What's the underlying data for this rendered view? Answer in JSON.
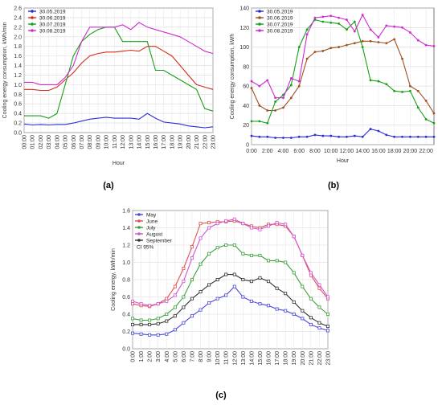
{
  "colors": {
    "blue": "#2b2bd6",
    "red": "#d62b1a",
    "green": "#18a018",
    "magenta": "#d02ad0",
    "darkred": "#a05020",
    "gray": "#333333"
  },
  "chart_data": [
    {
      "panel": "a",
      "panel_label": "(a)",
      "type": "line",
      "xlabel": "Hour",
      "ylabel": "Cooling energy consumption, kWh/min",
      "ylim": [
        0,
        2.6
      ],
      "yticks": [
        "0.0",
        "0.2",
        "0.4",
        "0.6",
        "0.8",
        "1.0",
        "1.2",
        "1.4",
        "1.6",
        "1.8",
        "2.0",
        "2.2",
        "2.4",
        "2.6"
      ],
      "x_tick_labels": [
        "00:00",
        "01:00",
        "02:00",
        "03:00",
        "04:00",
        "05:00",
        "06:00",
        "07:00",
        "08:00",
        "09:00",
        "10:00",
        "11:00",
        "12:00",
        "13:00",
        "14:00",
        "15:00",
        "16:00",
        "17:00",
        "18:00",
        "19:00",
        "20:00",
        "21:00",
        "22:00",
        "23:00"
      ],
      "legend_position": "top-left",
      "grid": true,
      "x": [
        0,
        1,
        2,
        3,
        4,
        5,
        6,
        7,
        8,
        9,
        10,
        11,
        12,
        13,
        14,
        15,
        16,
        17,
        18,
        19,
        20,
        21,
        22,
        23
      ],
      "series": [
        {
          "name": "30.05.2019",
          "color": "#2b2bd6",
          "values": [
            0.18,
            0.16,
            0.17,
            0.16,
            0.17,
            0.17,
            0.2,
            0.24,
            0.28,
            0.3,
            0.32,
            0.3,
            0.3,
            0.3,
            0.28,
            0.4,
            0.3,
            0.22,
            0.2,
            0.18,
            0.14,
            0.12,
            0.1,
            0.12
          ]
        },
        {
          "name": "30.06.2019",
          "color": "#d62b1a",
          "values": [
            0.9,
            0.9,
            0.88,
            0.88,
            0.95,
            1.1,
            1.25,
            1.45,
            1.6,
            1.65,
            1.68,
            1.68,
            1.7,
            1.72,
            1.7,
            1.8,
            1.8,
            1.7,
            1.6,
            1.4,
            1.2,
            1.0,
            0.95,
            0.9
          ]
        },
        {
          "name": "30.07.2019",
          "color": "#18a018",
          "values": [
            0.35,
            0.35,
            0.35,
            0.3,
            0.4,
            1.0,
            1.6,
            1.9,
            2.05,
            2.15,
            2.2,
            2.2,
            1.9,
            1.9,
            1.9,
            1.9,
            1.3,
            1.3,
            1.2,
            1.1,
            1.0,
            0.9,
            0.5,
            0.45
          ]
        },
        {
          "name": "30.08.2019",
          "color": "#d02ad0",
          "values": [
            1.05,
            1.05,
            1.0,
            1.0,
            1.0,
            1.15,
            1.4,
            1.9,
            2.2,
            2.2,
            2.2,
            2.2,
            2.25,
            2.15,
            2.3,
            2.2,
            2.15,
            2.1,
            2.05,
            2.0,
            1.9,
            1.8,
            1.7,
            1.65
          ]
        }
      ]
    },
    {
      "panel": "b",
      "panel_label": "(b)",
      "type": "line",
      "xlabel": "Hour",
      "ylabel": "Cooling energy consumption, kWh",
      "ylim": [
        0,
        140
      ],
      "yticks": [
        "0",
        "20",
        "40",
        "60",
        "80",
        "100",
        "120",
        "140"
      ],
      "x_tick_labels": [
        "0:00",
        "2:00",
        "4:00",
        "6:00",
        "8:00",
        "10:00",
        "12:00",
        "14:00",
        "16:00",
        "18:00",
        "20:00",
        "22:00"
      ],
      "legend_position": "top-left",
      "grid": true,
      "x": [
        0,
        1,
        2,
        3,
        4,
        5,
        6,
        7,
        8,
        9,
        10,
        11,
        12,
        13,
        14,
        15,
        16,
        17,
        18,
        19,
        20,
        21,
        22,
        23
      ],
      "series": [
        {
          "name": "30.05.2019",
          "color": "#2b2bd6",
          "values": [
            9,
            8,
            8,
            7,
            7,
            7,
            8,
            8,
            10,
            9,
            9,
            8,
            8,
            9,
            8,
            16,
            14,
            10,
            8,
            8,
            8,
            8,
            8,
            8
          ]
        },
        {
          "name": "30.06.2019",
          "color": "#a05020",
          "values": [
            58,
            40,
            35,
            35,
            38,
            48,
            60,
            88,
            95,
            96,
            99,
            100,
            102,
            104,
            106,
            106,
            105,
            104,
            108,
            88,
            60,
            55,
            45,
            32
          ]
        },
        {
          "name": "30.07.2019",
          "color": "#18a018",
          "values": [
            24,
            24,
            22,
            44,
            51,
            61,
            100,
            118,
            128,
            126,
            125,
            124,
            118,
            126,
            100,
            66,
            65,
            62,
            55,
            54,
            55,
            38,
            26,
            22
          ]
        },
        {
          "name": "30.08.2019",
          "color": "#d02ad0",
          "values": [
            65,
            60,
            66,
            48,
            48,
            68,
            65,
            113,
            130,
            131,
            132,
            130,
            128,
            116,
            133,
            118,
            110,
            122,
            121,
            120,
            115,
            107,
            102,
            101
          ]
        }
      ]
    },
    {
      "panel": "c",
      "panel_label": "(c)",
      "type": "line",
      "ylabel": "Cooling energy, kWh/min",
      "ylim": [
        0,
        1.6
      ],
      "yticks": [
        "0.0",
        "0.2",
        "0.4",
        "0.6",
        "0.8",
        "1.0",
        "1.2",
        "1.4",
        "1.6"
      ],
      "x_tick_labels": [
        "0:00",
        "1:00",
        "2:00",
        "3:00",
        "4:00",
        "5:00",
        "6:00",
        "7:00",
        "8:00",
        "9:00",
        "10:00",
        "11:00",
        "12:00",
        "13:00",
        "14:00",
        "15:00",
        "16:00",
        "17:00",
        "18:00",
        "19:00",
        "20:00",
        "21:00",
        "22:00",
        "23:00"
      ],
      "legend_position": "top-left",
      "annotation": "CI 95%",
      "grid": true,
      "x": [
        0,
        1,
        2,
        3,
        4,
        5,
        6,
        7,
        8,
        9,
        10,
        11,
        12,
        13,
        14,
        15,
        16,
        17,
        18,
        19,
        20,
        21,
        22,
        23
      ],
      "series": [
        {
          "name": "May",
          "color": "#4a4ad8",
          "values": [
            0.18,
            0.17,
            0.16,
            0.16,
            0.17,
            0.22,
            0.3,
            0.38,
            0.45,
            0.53,
            0.58,
            0.62,
            0.72,
            0.6,
            0.55,
            0.52,
            0.5,
            0.46,
            0.44,
            0.4,
            0.35,
            0.28,
            0.24,
            0.21
          ]
        },
        {
          "name": "June",
          "color": "#e05050",
          "values": [
            0.52,
            0.5,
            0.49,
            0.52,
            0.58,
            0.72,
            0.93,
            1.18,
            1.45,
            1.46,
            1.47,
            1.47,
            1.48,
            1.45,
            1.42,
            1.4,
            1.44,
            1.44,
            1.42,
            1.3,
            1.08,
            0.85,
            0.7,
            0.58
          ]
        },
        {
          "name": "July",
          "color": "#3aa03a",
          "values": [
            0.35,
            0.33,
            0.33,
            0.35,
            0.4,
            0.48,
            0.6,
            0.8,
            0.98,
            1.1,
            1.17,
            1.2,
            1.2,
            1.1,
            1.08,
            1.08,
            1.02,
            1.02,
            1.0,
            0.88,
            0.72,
            0.58,
            0.48,
            0.4
          ]
        },
        {
          "name": "August",
          "color": "#d055d0",
          "values": [
            0.55,
            0.52,
            0.5,
            0.52,
            0.55,
            0.62,
            0.78,
            1.05,
            1.28,
            1.4,
            1.45,
            1.48,
            1.5,
            1.45,
            1.4,
            1.38,
            1.42,
            1.46,
            1.44,
            1.3,
            1.08,
            0.88,
            0.74,
            0.6
          ]
        },
        {
          "name": "September",
          "color": "#333333",
          "values": [
            0.28,
            0.28,
            0.28,
            0.29,
            0.32,
            0.38,
            0.48,
            0.58,
            0.66,
            0.74,
            0.8,
            0.86,
            0.86,
            0.8,
            0.78,
            0.82,
            0.78,
            0.7,
            0.64,
            0.54,
            0.44,
            0.36,
            0.3,
            0.26
          ]
        }
      ]
    }
  ]
}
